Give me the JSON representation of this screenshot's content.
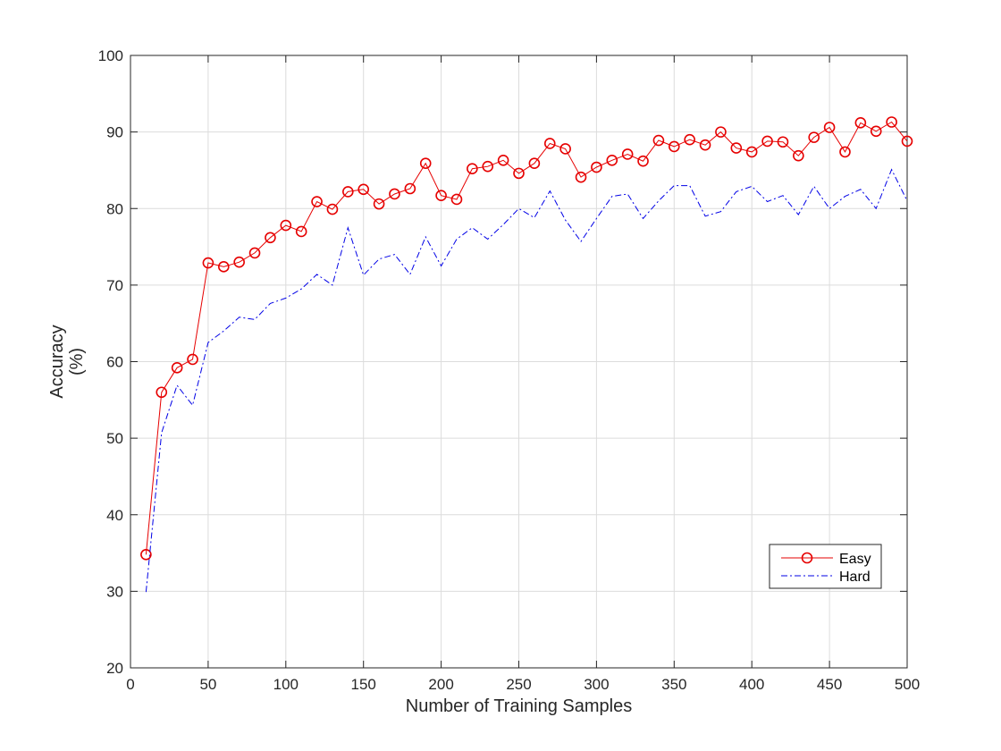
{
  "chart_data": {
    "type": "line",
    "xlabel": "Number of Training Samples",
    "ylabel": [
      "Accuracy",
      "(%)"
    ],
    "xlim": [
      0,
      500
    ],
    "ylim": [
      20,
      100
    ],
    "xticks": [
      0,
      50,
      100,
      150,
      200,
      250,
      300,
      350,
      400,
      450,
      500
    ],
    "yticks": [
      20,
      30,
      40,
      50,
      60,
      70,
      80,
      90,
      100
    ],
    "grid": true,
    "legend_position": "bottom-right",
    "x": [
      10,
      20,
      30,
      40,
      50,
      60,
      70,
      80,
      90,
      100,
      110,
      120,
      130,
      140,
      150,
      160,
      170,
      180,
      190,
      200,
      210,
      220,
      230,
      240,
      250,
      260,
      270,
      280,
      290,
      300,
      310,
      320,
      330,
      340,
      350,
      360,
      370,
      380,
      390,
      400,
      410,
      420,
      430,
      440,
      450,
      460,
      470,
      480,
      490,
      500
    ],
    "series": [
      {
        "name": "Easy",
        "color": "#e60000",
        "line_style": "solid",
        "marker": "circle",
        "values": [
          34.8,
          56.0,
          59.2,
          60.3,
          72.9,
          72.4,
          73.0,
          74.2,
          76.2,
          77.8,
          77.0,
          80.9,
          79.9,
          82.2,
          82.5,
          80.6,
          81.9,
          82.6,
          85.9,
          81.7,
          81.2,
          85.2,
          85.5,
          86.3,
          84.6,
          85.9,
          88.5,
          87.8,
          84.1,
          85.4,
          86.3,
          87.1,
          86.2,
          88.9,
          88.1,
          89.0,
          88.3,
          90.0,
          87.9,
          87.4,
          88.8,
          88.7,
          86.9,
          89.3,
          90.6,
          87.4,
          91.2,
          90.1,
          91.3,
          88.8
        ]
      },
      {
        "name": "Hard",
        "color": "#0000e6",
        "line_style": "dashdot",
        "marker": "none",
        "values": [
          29.9,
          50.7,
          56.9,
          54.3,
          62.5,
          64.0,
          65.8,
          65.5,
          67.6,
          68.3,
          69.5,
          71.4,
          70.0,
          77.5,
          71.3,
          73.4,
          74.0,
          71.4,
          76.3,
          72.5,
          76.0,
          77.5,
          76.0,
          77.9,
          80.0,
          78.8,
          82.3,
          78.5,
          75.7,
          78.7,
          81.6,
          81.9,
          78.7,
          81.0,
          83.0,
          83.0,
          79.0,
          79.6,
          82.2,
          82.9,
          80.9,
          81.7,
          79.2,
          82.9,
          80.0,
          81.6,
          82.5,
          80.0,
          85.1,
          81.0
        ]
      }
    ]
  }
}
